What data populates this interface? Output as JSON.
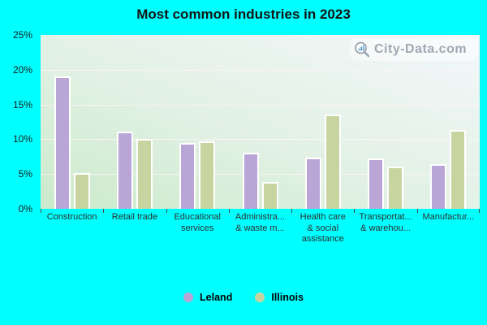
{
  "title": "Most common industries in 2023",
  "watermark": {
    "text": "City-Data.com",
    "icon": "magnifier-icon"
  },
  "y_axis": {
    "tick_labels": [
      "25%",
      "20%",
      "15%",
      "10%",
      "5%",
      "0%"
    ]
  },
  "legend": {
    "items": [
      {
        "label": "Leland",
        "color": "#b9a6d6"
      },
      {
        "label": "Illinois",
        "color": "#c8d4a0"
      }
    ]
  },
  "chart_data": {
    "type": "bar",
    "title": "Most common industries in 2023",
    "categories": [
      "Construction",
      "Retail trade",
      "Educational services",
      "Administra... & waste m...",
      "Health care & social assistance",
      "Transportat... & warehou...",
      "Manufactur..."
    ],
    "category_label_lines": [
      [
        "Construction"
      ],
      [
        "Retail trade"
      ],
      [
        "Educational",
        "services"
      ],
      [
        "Administra...",
        "& waste m..."
      ],
      [
        "Health care",
        "& social",
        "assistance"
      ],
      [
        "Transportat...",
        "& warehou..."
      ],
      [
        "Manufactur..."
      ]
    ],
    "series": [
      {
        "name": "Leland",
        "color": "#b9a6d6",
        "values": [
          19.0,
          11.1,
          9.5,
          8.1,
          7.4,
          7.2,
          6.4
        ]
      },
      {
        "name": "Illinois",
        "color": "#c8d4a0",
        "values": [
          5.1,
          10.0,
          9.7,
          3.8,
          13.6,
          6.1,
          11.3
        ]
      }
    ],
    "ylim": [
      0,
      25
    ],
    "ytick_step": 5,
    "grid": true,
    "legend_position": "bottom",
    "page_background": "#00ffff"
  }
}
